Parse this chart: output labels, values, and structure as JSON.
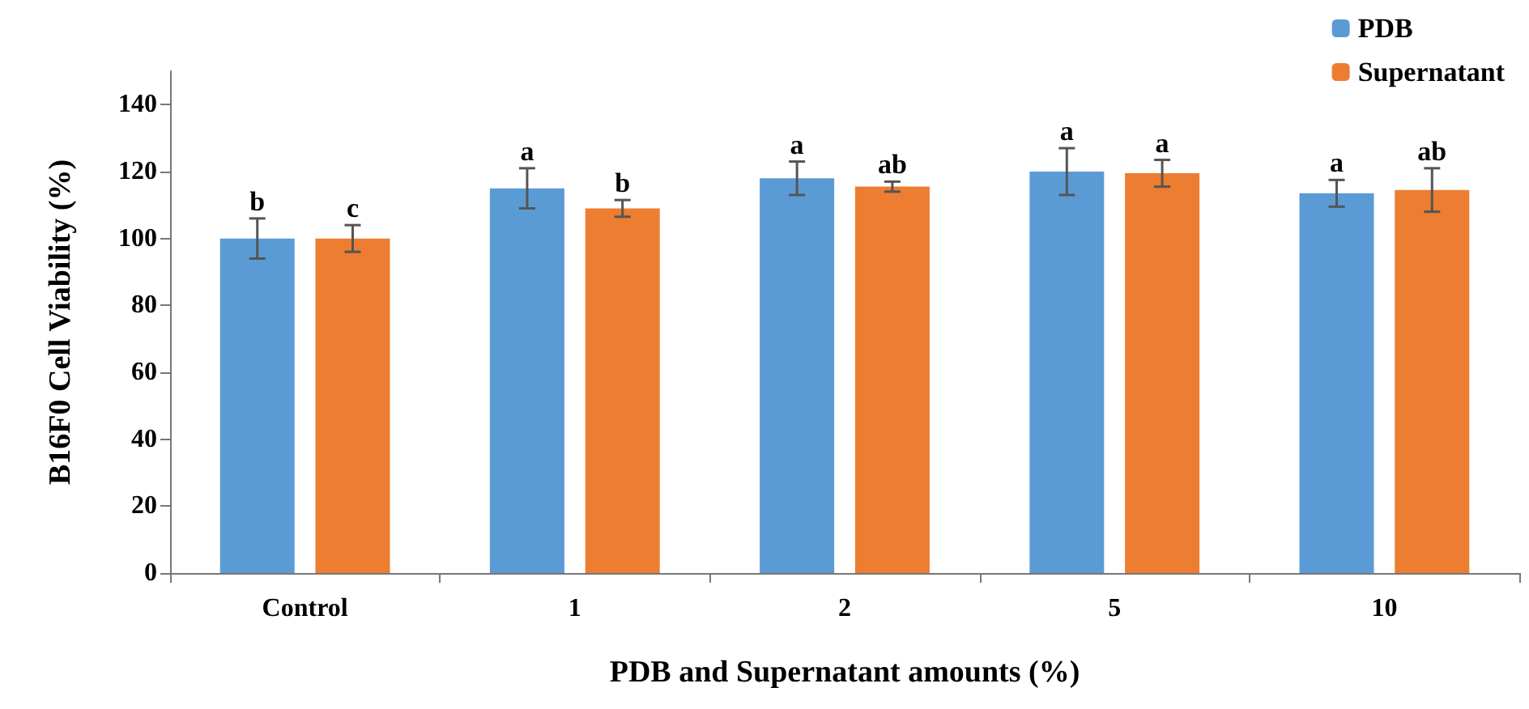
{
  "chart_data": {
    "type": "bar",
    "xlabel": "PDB and Supernatant amounts (%)",
    "ylabel": "B16F0 Cell Viability (%)",
    "categories": [
      "Control",
      "1",
      "2",
      "5",
      "10"
    ],
    "series": [
      {
        "name": "PDB",
        "color": "#5b9bd5",
        "values": [
          100,
          115,
          118,
          120,
          113.5
        ],
        "errors": [
          6,
          6,
          5,
          7,
          4
        ],
        "value_labels": [
          "b",
          "a",
          "a",
          "a",
          "a"
        ]
      },
      {
        "name": "Supernatant",
        "color": "#ed7d31",
        "values": [
          100,
          109,
          115.5,
          119.5,
          114.5
        ],
        "errors": [
          4,
          2.5,
          1.5,
          4,
          6.5
        ],
        "value_labels": [
          "c",
          "b",
          "ab",
          "a",
          "ab"
        ]
      }
    ],
    "ylim": [
      0,
      150
    ],
    "yticks": [
      0,
      20,
      40,
      60,
      80,
      100,
      120,
      140
    ],
    "grid": false,
    "legend": "top right"
  }
}
